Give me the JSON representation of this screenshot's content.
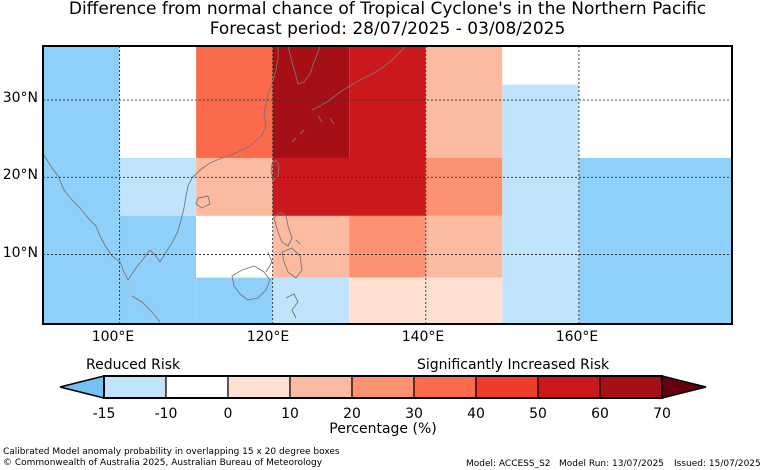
{
  "title_line1": "Difference from normal chance of Tropical Cyclone's in the Northern Pacific",
  "title_line2": "Forecast period: 28/07/2025 - 03/08/2025",
  "map": {
    "lon_range": [
      90,
      180
    ],
    "lat_range": [
      1,
      37
    ],
    "y_ticks": [
      "30°N",
      "20°N",
      "10°N"
    ],
    "x_ticks": [
      "100°E",
      "120°E",
      "140°E",
      "160°E"
    ],
    "grid": "dashed",
    "colors": {
      "lt_blue": "#c0e4fb",
      "blue": "#8fd0fb",
      "white": "#ffffff",
      "c0_10": "#fee0d2",
      "c10_20": "#fcbba1",
      "c20_30": "#fc9272",
      "c30_40": "#fb6a4a",
      "c40_50": "#ef3b2c",
      "c50_60": "#cb181d",
      "c60_70": "#a50f15",
      "c70p": "#67000d",
      "below": "#73c2f4"
    },
    "cells": [
      {
        "lon": [
          90,
          100
        ],
        "lat": [
          1,
          37
        ],
        "c": "blue"
      },
      {
        "lon": [
          100,
          110
        ],
        "lat": [
          28,
          37
        ],
        "c": "white"
      },
      {
        "lon": [
          100,
          110
        ],
        "lat": [
          22,
          28
        ],
        "c": "white"
      },
      {
        "lon": [
          100,
          110
        ],
        "lat": [
          15,
          22.5
        ],
        "c": "lt_blue"
      },
      {
        "lon": [
          100,
          110
        ],
        "lat": [
          1,
          15
        ],
        "c": "blue"
      },
      {
        "lon": [
          110,
          120
        ],
        "lat": [
          22.5,
          37
        ],
        "c": "c30_40"
      },
      {
        "lon": [
          110,
          120
        ],
        "lat": [
          15,
          22.5
        ],
        "c": "c10_20"
      },
      {
        "lon": [
          110,
          120
        ],
        "lat": [
          7,
          15
        ],
        "c": "white"
      },
      {
        "lon": [
          110,
          120
        ],
        "lat": [
          1,
          7
        ],
        "c": "blue"
      },
      {
        "lon": [
          120,
          130
        ],
        "lat": [
          22.5,
          37
        ],
        "c": "c60_70"
      },
      {
        "lon": [
          120,
          140
        ],
        "lat": [
          15,
          22.5
        ],
        "c": "c50_60"
      },
      {
        "lon": [
          120,
          130
        ],
        "lat": [
          7,
          15
        ],
        "c": "c10_20"
      },
      {
        "lon": [
          120,
          130
        ],
        "lat": [
          1,
          7
        ],
        "c": "lt_blue"
      },
      {
        "lon": [
          130,
          140
        ],
        "lat": [
          22.5,
          37
        ],
        "c": "c50_60"
      },
      {
        "lon": [
          130,
          140
        ],
        "lat": [
          7,
          15
        ],
        "c": "c20_30"
      },
      {
        "lon": [
          130,
          150
        ],
        "lat": [
          1,
          7
        ],
        "c": "c0_10"
      },
      {
        "lon": [
          140,
          150
        ],
        "lat": [
          22.5,
          37
        ],
        "c": "c10_20"
      },
      {
        "lon": [
          140,
          150
        ],
        "lat": [
          15,
          22.5
        ],
        "c": "c20_30"
      },
      {
        "lon": [
          140,
          150
        ],
        "lat": [
          7,
          15
        ],
        "c": "c10_20"
      },
      {
        "lon": [
          150,
          160
        ],
        "lat": [
          1,
          32
        ],
        "c": "lt_blue"
      },
      {
        "lon": [
          150,
          160
        ],
        "lat": [
          32,
          37
        ],
        "c": "white"
      },
      {
        "lon": [
          160,
          180
        ],
        "lat": [
          22.5,
          37
        ],
        "c": "white"
      },
      {
        "lon": [
          160,
          180
        ],
        "lat": [
          1,
          22.5
        ],
        "c": "blue"
      }
    ]
  },
  "colorbar": {
    "left_label": "Reduced Risk",
    "right_label": "Significantly Increased Risk",
    "ticks": [
      "-15",
      "-10",
      "0",
      "10",
      "20",
      "30",
      "40",
      "50",
      "60",
      "70"
    ],
    "segments": [
      "lt_blue",
      "white",
      "c0_10",
      "c10_20",
      "c20_30",
      "c30_40",
      "c40_50",
      "c50_60",
      "c60_70"
    ],
    "below_color": "below",
    "above_color": "c70p",
    "label": "Percentage (%)"
  },
  "footer": {
    "line1": "Calibrated Model anomaly probability in overlapping 15 x 20 degree boxes",
    "line2": "© Commonwealth of Australia 2025, Australian Bureau of Meteorology",
    "model": "Model: ACCESS_S2",
    "model_run": "Model Run: 13/07/2025",
    "issued": "Issued: 15/07/2025"
  }
}
